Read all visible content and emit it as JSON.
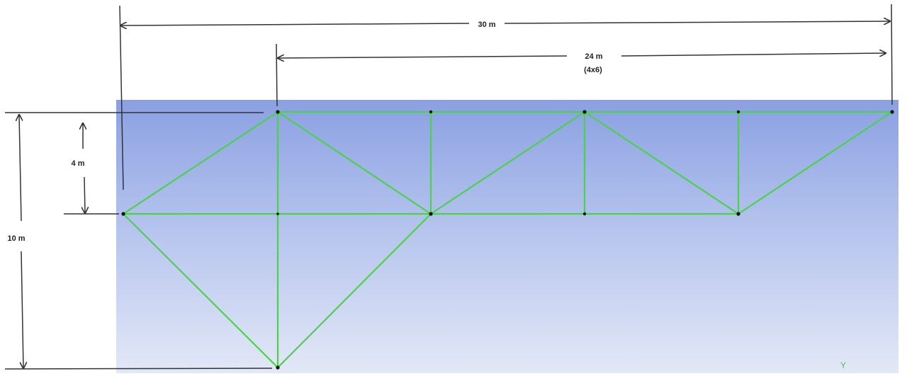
{
  "dimensions": {
    "overall_span": "30 m",
    "panel_span": "24 m",
    "panel_span_note": "(4x6)",
    "upper_depth": "4 m",
    "total_depth": "10 m"
  },
  "axis": {
    "label": "Y"
  },
  "colors": {
    "member": "#4cd14a",
    "node": "#111111",
    "dimension_line": "#333333",
    "background_top": "#8aa0e2",
    "background_bottom": "#e3e8f7"
  }
}
